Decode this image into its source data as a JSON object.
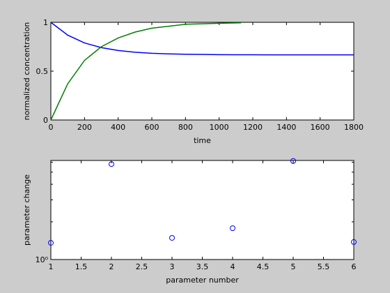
{
  "chart_data": [
    {
      "type": "line",
      "xlabel": "time",
      "ylabel": "normalized concentration",
      "xlim": [
        0,
        1800
      ],
      "ylim": [
        0,
        1
      ],
      "xticks": [
        0,
        200,
        400,
        600,
        800,
        1000,
        1200,
        1400,
        1600,
        1800
      ],
      "yticks": [
        0,
        0.5,
        1
      ],
      "series": [
        {
          "color": "#0000ff",
          "x": [
            0,
            100,
            200,
            300,
            400,
            500,
            600,
            700,
            800,
            900,
            1000,
            1100,
            1200,
            1300,
            1400,
            1500,
            1600,
            1700,
            1800
          ],
          "values": [
            1,
            0.869,
            0.789,
            0.741,
            0.712,
            0.694,
            0.683,
            0.677,
            0.673,
            0.671,
            0.669,
            0.668,
            0.668,
            0.667,
            0.667,
            0.667,
            0.667,
            0.667,
            0.667
          ]
        },
        {
          "color": "#007f00",
          "x": [
            0,
            100,
            200,
            300,
            400,
            500,
            600,
            700,
            800,
            900,
            1000,
            1100,
            1130
          ],
          "values": [
            0,
            0.37,
            0.61,
            0.75,
            0.84,
            0.9,
            0.94,
            0.96,
            0.98,
            0.985,
            0.99,
            0.994,
            0.995
          ]
        }
      ]
    },
    {
      "type": "scatter",
      "xlabel": "parameter number",
      "ylabel": "parameter change",
      "xlim": [
        1,
        6
      ],
      "ylim": [
        1,
        6.2
      ],
      "log_y": true,
      "xticks": [
        1,
        1.5,
        2,
        2.5,
        3,
        3.5,
        4,
        4.5,
        5,
        5.5,
        6
      ],
      "yticks": [
        {
          "value": 1,
          "label": "10⁰"
        }
      ],
      "minor_yticks": [
        2,
        3,
        4,
        5,
        6
      ],
      "series": [
        {
          "color": "#0000ff",
          "marker": "circle",
          "x": [
            1,
            2,
            3,
            4,
            5,
            6
          ],
          "values": [
            1.36,
            5.8,
            1.49,
            1.78,
            6.14,
            1.38
          ]
        }
      ]
    }
  ]
}
